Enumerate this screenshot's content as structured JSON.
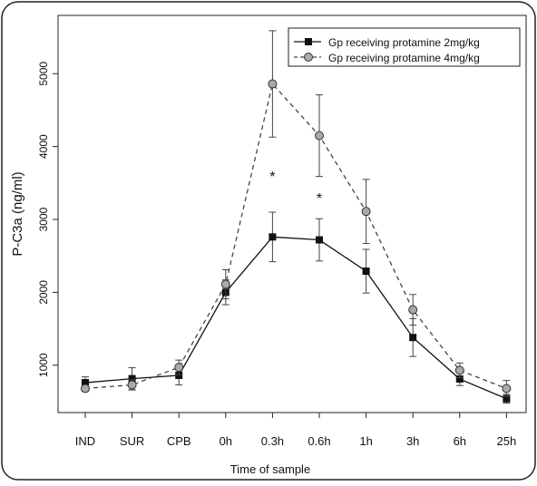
{
  "chart_data": {
    "type": "line",
    "xlabel": "Time of sample",
    "ylabel": "P-C3a (ng/ml)",
    "categories": [
      "IND",
      "SUR",
      "CPB",
      "0h",
      "0.3h",
      "0.6h",
      "1h",
      "3h",
      "6h",
      "25h"
    ],
    "yticks": [
      "1000",
      "2000",
      "3000",
      "4000",
      "5000"
    ],
    "ylim": [
      350,
      5800
    ],
    "grid": false,
    "legend_position": "top-right",
    "series": [
      {
        "name": "Gp receiving protamine 2mg/kg",
        "line_style": "solid",
        "marker": "square",
        "color": "#111111",
        "values": [
          760,
          815,
          860,
          2000,
          2760,
          2720,
          2290,
          1380,
          810,
          540
        ],
        "error": [
          80,
          150,
          130,
          170,
          340,
          290,
          300,
          260,
          90,
          60
        ]
      },
      {
        "name": "Gp receiving protamine 4mg/kg",
        "line_style": "dashed",
        "marker": "circle",
        "color": "#aaaaaa",
        "values": [
          680,
          730,
          970,
          2110,
          4860,
          4150,
          3110,
          1760,
          930,
          680
        ],
        "error": [
          40,
          70,
          100,
          200,
          730,
          560,
          440,
          210,
          100,
          110
        ]
      }
    ],
    "annotations": [
      {
        "text": "*",
        "category": "0.3h",
        "y": 3600
      },
      {
        "text": "*",
        "category": "0.6h",
        "y": 3300
      }
    ]
  }
}
